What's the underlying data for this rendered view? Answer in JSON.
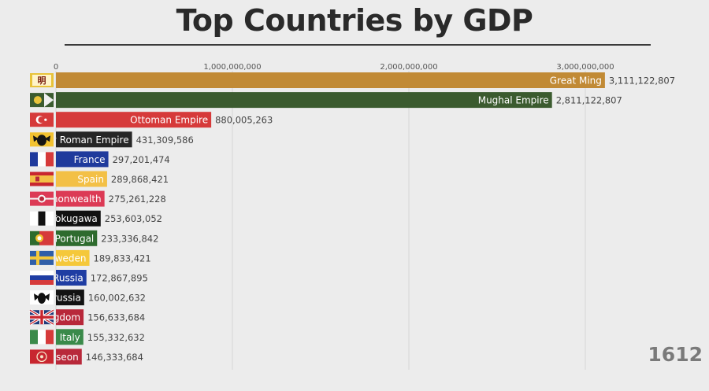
{
  "page": {
    "title": "Top Countries by GDP",
    "year": "1612"
  },
  "colors": {
    "background": "#ececec",
    "grid": "#d6d6d6",
    "title": "#2a2a2a",
    "year": "#7a7a7a",
    "value_label": "#444444"
  },
  "chart_data": {
    "type": "bar",
    "orientation": "horizontal",
    "title": "Top Countries by GDP",
    "xlim": [
      0,
      3400000000
    ],
    "ticks": [
      {
        "value": 0,
        "label": "0"
      },
      {
        "value": 1000000000,
        "label": "1,000,000,000"
      },
      {
        "value": 2000000000,
        "label": "2,000,000,000"
      },
      {
        "value": 3000000000,
        "label": "3,000,000,000"
      }
    ],
    "grid": true,
    "bars": [
      {
        "label": "Great Ming",
        "value": 3111122807,
        "value_label": "3,111,122,807",
        "color": "#c18a35",
        "flag": "ming-flag-icon"
      },
      {
        "label": "Mughal Empire",
        "value": 2811122807,
        "value_label": "2,811,122,807",
        "color": "#3b5b2f",
        "flag": "mughal-flag-icon"
      },
      {
        "label": "Ottoman Empire",
        "value": 880005263,
        "value_label": "880,005,263",
        "color": "#d63a3a",
        "flag": "ottoman-flag-icon"
      },
      {
        "label": "y Roman Empire",
        "value": 431309586,
        "value_label": "431,309,586",
        "color": "#262626",
        "flag": "hre-flag-icon"
      },
      {
        "label": "France",
        "value": 297201474,
        "value_label": "297,201,474",
        "color": "#1f3a9c",
        "flag": "france-flag-icon"
      },
      {
        "label": "Spain",
        "value": 289868421,
        "value_label": "289,868,421",
        "color": "#f3c046",
        "flag": "spain-flag-icon"
      },
      {
        "label": "nonwealth",
        "value": 275261228,
        "value_label": "275,261,228",
        "color": "#dc3a55",
        "flag": "commonwealth-flag-icon"
      },
      {
        "label": "Tokugawa",
        "value": 253603052,
        "value_label": "253,603,052",
        "color": "#111111",
        "flag": "tokugawa-flag-icon"
      },
      {
        "label": "Portugal",
        "value": 233336842,
        "value_label": "233,336,842",
        "color": "#2e6b2e",
        "flag": "portugal-flag-icon"
      },
      {
        "label": "weden",
        "value": 189833421,
        "value_label": "189,833,421",
        "color": "#f5c83a",
        "flag": "sweden-flag-icon"
      },
      {
        "label": "Russia",
        "value": 172867895,
        "value_label": "172,867,895",
        "color": "#1f3da3",
        "flag": "russia-flag-icon"
      },
      {
        "label": "russia",
        "value": 160002632,
        "value_label": "160,002,632",
        "color": "#121212",
        "flag": "prussia-flag-icon"
      },
      {
        "label": "gdom",
        "value": 156633684,
        "value_label": "156,633,684",
        "color": "#b8283a",
        "flag": "uk-flag-icon"
      },
      {
        "label": "Italy",
        "value": 155332632,
        "value_label": "155,332,632",
        "color": "#3a8a4a",
        "flag": "italy-flag-icon"
      },
      {
        "label": "seon",
        "value": 146333684,
        "value_label": "146,333,684",
        "color": "#b8283a",
        "flag": "joseon-flag-icon"
      }
    ]
  }
}
